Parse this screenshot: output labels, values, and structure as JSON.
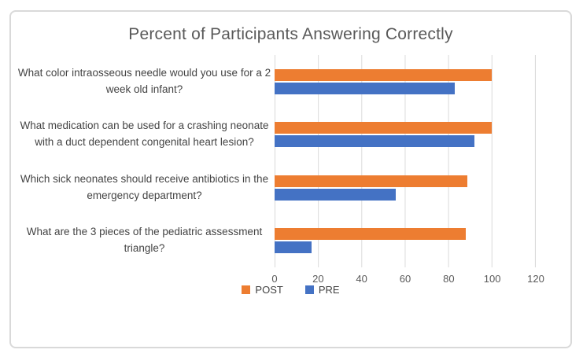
{
  "chart_data": {
    "type": "bar",
    "orientation": "horizontal",
    "title": "Percent of Participants Answering Correctly",
    "categories": [
      "What color intraosseous needle would you use for a 2 week old infant?",
      "What medication can be used for a crashing neonate with a duct dependent congenital heart lesion?",
      "Which sick neonates should receive antibiotics in the emergency department?",
      "What are the 3 pieces of the pediatric assessment triangle?"
    ],
    "series": [
      {
        "name": "POST",
        "color": "#ED7D31",
        "values": [
          100,
          100,
          89,
          88
        ]
      },
      {
        "name": "PRE",
        "color": "#4472C4",
        "values": [
          83,
          92,
          56,
          17
        ]
      }
    ],
    "xlim": [
      0,
      120
    ],
    "xticks": [
      0,
      20,
      40,
      60,
      80,
      100,
      120
    ],
    "grid": "vertical-gridlines-on",
    "legend_position": "bottom",
    "colors": {
      "gridline": "#d9d9d9",
      "frame_border": "#d9d9d9",
      "title_text": "#595959",
      "axis_text": "#595959",
      "label_text": "#444444"
    }
  }
}
